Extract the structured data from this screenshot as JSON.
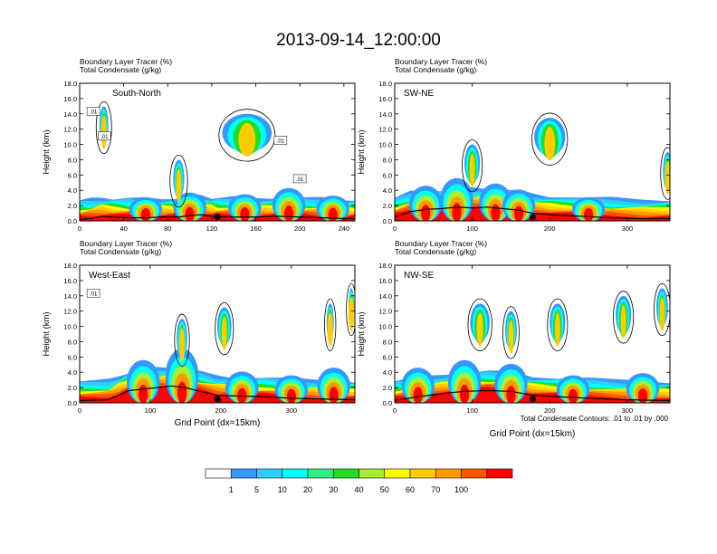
{
  "chart_data": {
    "type": "heatmap",
    "title": "2013-09-14_12:00:00",
    "shading_label": "Boundary Layer Tracer   (%)",
    "contour_label": "Total Condensate   (g/kg)",
    "contour_note": "Total Condensate Contours: .01 to .01 by .000",
    "colorbar": {
      "levels": [
        "1",
        "5",
        "10",
        "20",
        "30",
        "40",
        "50",
        "60",
        "70",
        "100"
      ],
      "colors": [
        "#ffffff",
        "#3399ff",
        "#33ccff",
        "#00ffff",
        "#33ee88",
        "#22dd22",
        "#aaee33",
        "#ffff00",
        "#ffcc00",
        "#ff9900",
        "#ff5500",
        "#ff0000"
      ]
    },
    "panels": [
      {
        "id": "south-north",
        "name": "South-North",
        "xlabel": "",
        "ylabel": "Height (km)",
        "xlim": [
          0,
          250
        ],
        "ylim": [
          0,
          18
        ],
        "xticks": [
          0,
          40,
          80,
          120,
          160,
          200,
          240
        ],
        "yticks": [
          "0.0",
          "2.0",
          "4.0",
          "6.0",
          "8.0",
          "10.0",
          "12.0",
          "14.0",
          "16.0",
          "18.0"
        ],
        "marker_x": 125,
        "terrain": [
          [
            0,
            0.2
          ],
          [
            10,
            0.3
          ],
          [
            20,
            0.6
          ],
          [
            30,
            0.5
          ],
          [
            45,
            0.4
          ],
          [
            60,
            0.4
          ],
          [
            75,
            0.5
          ],
          [
            90,
            0.5
          ],
          [
            100,
            0.7
          ],
          [
            110,
            0.8
          ],
          [
            120,
            0.6
          ],
          [
            125,
            0.5
          ],
          [
            140,
            0.5
          ],
          [
            160,
            0.5
          ],
          [
            180,
            0.6
          ],
          [
            200,
            0.5
          ],
          [
            220,
            0.4
          ],
          [
            240,
            0.3
          ],
          [
            250,
            0.3
          ]
        ],
        "contour_labels": [
          ".01",
          ".01",
          ".01",
          ".01"
        ],
        "cells": [
          {
            "x": 190,
            "h": 3.2
          },
          {
            "x": 150,
            "h": 2.4
          },
          {
            "x": 100,
            "h": 2.6
          },
          {
            "x": 60,
            "h": 2.0
          },
          {
            "x": 230,
            "h": 2.2
          }
        ],
        "towers": [
          {
            "x": 22,
            "top": 15,
            "w": 8
          },
          {
            "x": 152,
            "top": 14,
            "w": 45
          },
          {
            "x": 90,
            "top": 8,
            "w": 10
          }
        ]
      },
      {
        "id": "sw-ne",
        "name": "SW-NE",
        "xlabel": "",
        "ylabel": "Height (km)",
        "xlim": [
          0,
          355
        ],
        "ylim": [
          0,
          18
        ],
        "xticks": [
          0,
          100,
          200,
          300
        ],
        "yticks": [
          "0.0",
          "2.0",
          "4.0",
          "6.0",
          "8.0",
          "10.0",
          "12.0",
          "14.0",
          "16.0",
          "18.0"
        ],
        "marker_x": 178,
        "terrain": [
          [
            0,
            0.5
          ],
          [
            20,
            1.2
          ],
          [
            40,
            1.5
          ],
          [
            60,
            1.6
          ],
          [
            80,
            1.8
          ],
          [
            100,
            1.7
          ],
          [
            120,
            1.8
          ],
          [
            140,
            1.6
          ],
          [
            160,
            1.4
          ],
          [
            178,
            1.0
          ],
          [
            200,
            0.8
          ],
          [
            240,
            0.6
          ],
          [
            280,
            0.4
          ],
          [
            320,
            0.3
          ],
          [
            355,
            0.3
          ]
        ],
        "contour_labels": [],
        "cells": [
          {
            "x": 40,
            "h": 3.5
          },
          {
            "x": 80,
            "h": 4.5
          },
          {
            "x": 130,
            "h": 3.8
          },
          {
            "x": 160,
            "h": 3.0
          },
          {
            "x": 250,
            "h": 2.0
          }
        ],
        "towers": [
          {
            "x": 200,
            "top": 13.5,
            "w": 40
          },
          {
            "x": 352,
            "top": 9,
            "w": 12
          },
          {
            "x": 100,
            "top": 10,
            "w": 20
          }
        ]
      },
      {
        "id": "west-east",
        "name": "West-East",
        "xlabel": "Grid Point (dx=15km)",
        "ylabel": "Height (km)",
        "xlim": [
          0,
          390
        ],
        "ylim": [
          0,
          18
        ],
        "xticks": [
          0,
          100,
          200,
          300
        ],
        "yticks": [
          "0.0",
          "2.0",
          "4.0",
          "6.0",
          "8.0",
          "10.0",
          "12.0",
          "14.0",
          "16.0",
          "18.0"
        ],
        "marker_x": 195,
        "terrain": [
          [
            0,
            0.3
          ],
          [
            40,
            0.4
          ],
          [
            55,
            1.0
          ],
          [
            70,
            1.6
          ],
          [
            90,
            1.8
          ],
          [
            110,
            2.0
          ],
          [
            130,
            2.2
          ],
          [
            150,
            2.0
          ],
          [
            170,
            1.5
          ],
          [
            195,
            1.0
          ],
          [
            220,
            0.9
          ],
          [
            260,
            0.8
          ],
          [
            300,
            0.6
          ],
          [
            340,
            0.5
          ],
          [
            390,
            0.4
          ]
        ],
        "contour_labels": [
          ".01"
        ],
        "cells": [
          {
            "x": 90,
            "h": 4.5
          },
          {
            "x": 145,
            "h": 6.0
          },
          {
            "x": 230,
            "h": 3.0
          },
          {
            "x": 300,
            "h": 2.5
          },
          {
            "x": 360,
            "h": 3.5
          }
        ],
        "towers": [
          {
            "x": 145,
            "top": 11,
            "w": 15
          },
          {
            "x": 355,
            "top": 13,
            "w": 10
          },
          {
            "x": 205,
            "top": 12.5,
            "w": 20
          },
          {
            "x": 385,
            "top": 15,
            "w": 8
          }
        ]
      },
      {
        "id": "nw-se",
        "name": "NW-SE",
        "xlabel": "Grid Point (dx=15km)",
        "ylabel": "Height (km)",
        "xlim": [
          0,
          355
        ],
        "ylim": [
          0,
          18
        ],
        "xticks": [
          0,
          100,
          200,
          300
        ],
        "yticks": [
          "0.0",
          "2.0",
          "4.0",
          "6.0",
          "8.0",
          "10.0",
          "12.0",
          "14.0",
          "16.0",
          "18.0"
        ],
        "marker_x": 178,
        "terrain": [
          [
            0,
            0.3
          ],
          [
            30,
            0.8
          ],
          [
            60,
            1.2
          ],
          [
            90,
            1.5
          ],
          [
            120,
            1.6
          ],
          [
            150,
            1.5
          ],
          [
            178,
            1.0
          ],
          [
            210,
            0.8
          ],
          [
            250,
            0.6
          ],
          [
            300,
            0.4
          ],
          [
            355,
            0.3
          ]
        ],
        "contour_labels": [],
        "cells": [
          {
            "x": 30,
            "h": 3.5
          },
          {
            "x": 90,
            "h": 4.5
          },
          {
            "x": 150,
            "h": 4.0
          },
          {
            "x": 230,
            "h": 2.5
          },
          {
            "x": 320,
            "h": 2.8
          }
        ],
        "towers": [
          {
            "x": 110,
            "top": 13,
            "w": 25
          },
          {
            "x": 150,
            "top": 12,
            "w": 15
          },
          {
            "x": 295,
            "top": 14,
            "w": 20
          },
          {
            "x": 210,
            "top": 13,
            "w": 20
          },
          {
            "x": 345,
            "top": 15,
            "w": 15
          }
        ]
      }
    ]
  }
}
